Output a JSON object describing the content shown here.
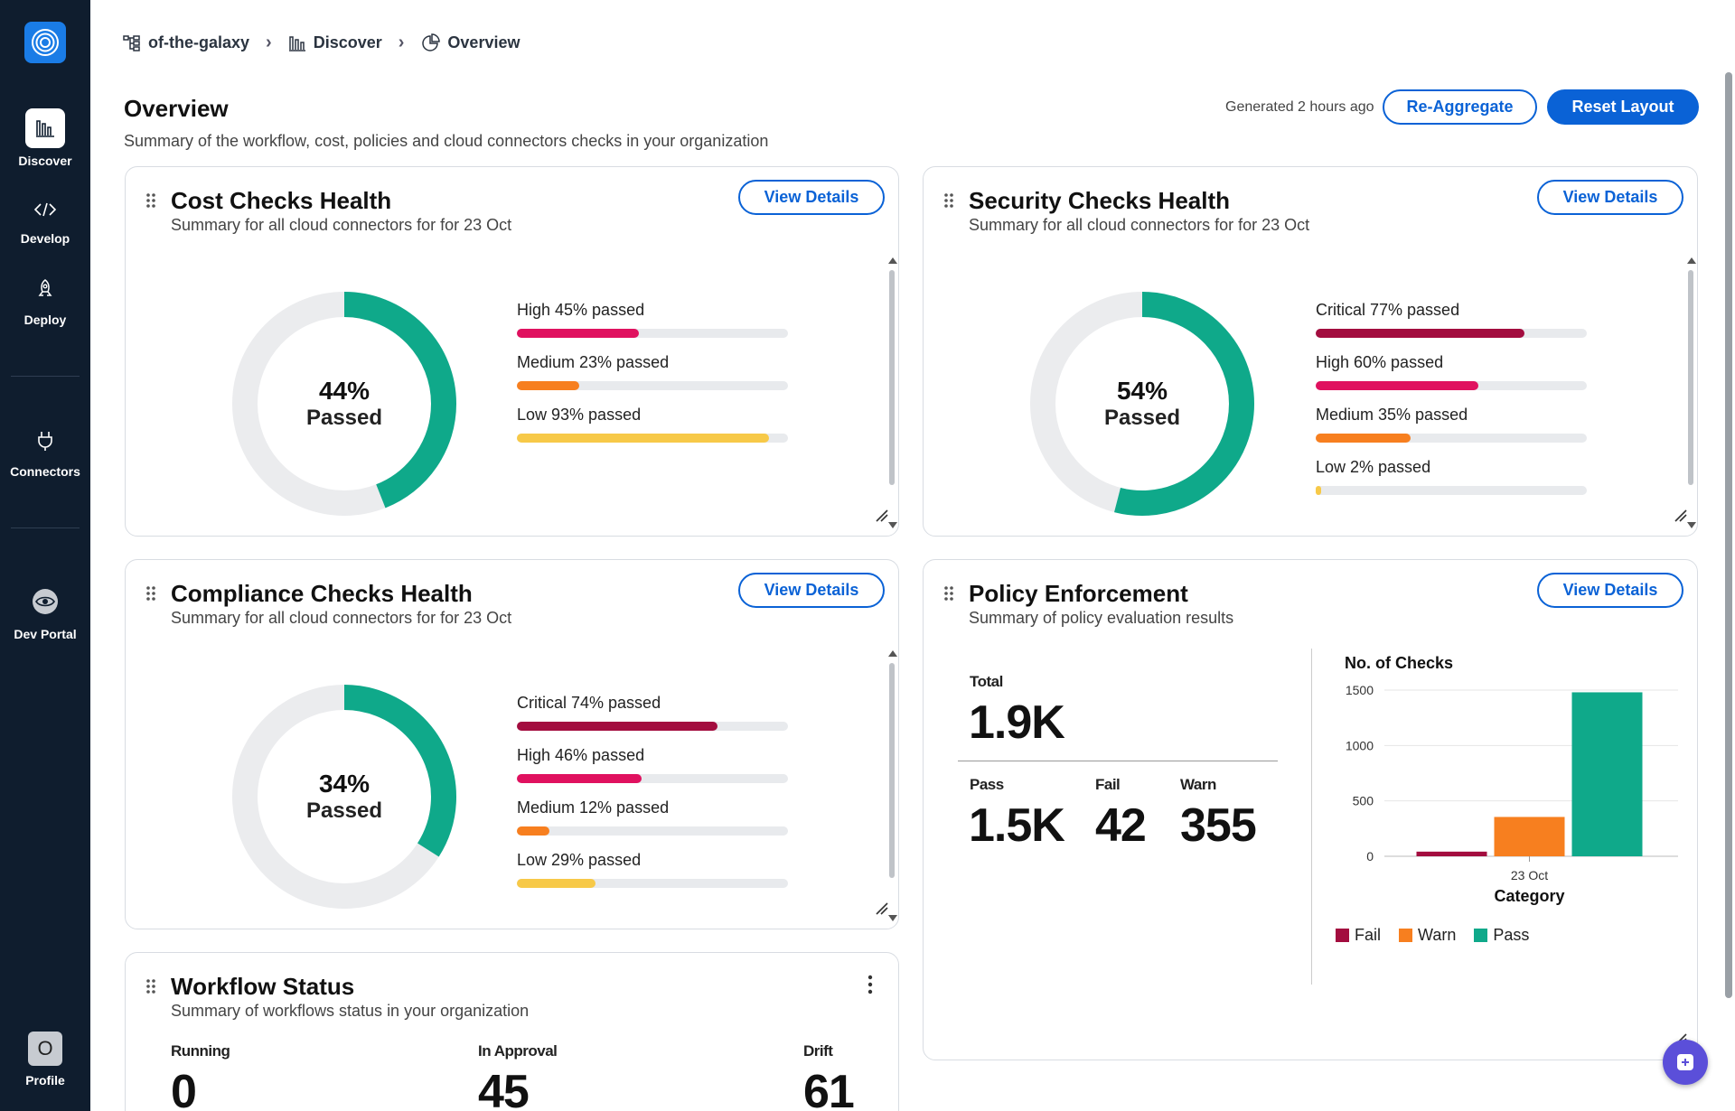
{
  "sidebar": {
    "items": [
      {
        "label": "Discover",
        "icon": "discover-icon",
        "active": true
      },
      {
        "label": "Develop",
        "icon": "code-icon"
      },
      {
        "label": "Deploy",
        "icon": "rocket-icon"
      },
      {
        "label": "Connectors",
        "icon": "plug-icon"
      },
      {
        "label": "Dev Portal",
        "icon": "portal-icon"
      }
    ],
    "profile": {
      "initial": "O",
      "label": "Profile"
    }
  },
  "breadcrumb": {
    "org": "of-the-galaxy",
    "section": "Discover",
    "page": "Overview"
  },
  "header": {
    "title": "Overview",
    "subtitle": "Summary of the workflow, cost, policies and cloud connectors checks in your organization",
    "generated": "Generated 2 hours ago",
    "reaggregate_label": "Re-Aggregate",
    "reset_label": "Reset Layout"
  },
  "cost": {
    "title": "Cost Checks Health",
    "subtitle": "Summary for all cloud connectors for for 23 Oct",
    "view_label": "View Details",
    "percent": 44,
    "percent_text": "44%",
    "passed_text": "Passed",
    "bars": [
      {
        "label": "High 45% passed",
        "value": 45,
        "color": "#e0115f"
      },
      {
        "label": "Medium 23% passed",
        "value": 23,
        "color": "#f77f1f"
      },
      {
        "label": "Low 93% passed",
        "value": 93,
        "color": "#f7c948"
      }
    ]
  },
  "security": {
    "title": "Security Checks Health",
    "subtitle": "Summary for all cloud connectors for for 23 Oct",
    "view_label": "View Details",
    "percent": 54,
    "percent_text": "54%",
    "passed_text": "Passed",
    "bars": [
      {
        "label": "Critical 77% passed",
        "value": 77,
        "color": "#a30d3f"
      },
      {
        "label": "High 60% passed",
        "value": 60,
        "color": "#e0115f"
      },
      {
        "label": "Medium 35% passed",
        "value": 35,
        "color": "#f77f1f"
      },
      {
        "label": "Low 2% passed",
        "value": 2,
        "color": "#f7c948"
      }
    ]
  },
  "compliance": {
    "title": "Compliance Checks Health",
    "subtitle": "Summary for all cloud connectors for for 23 Oct",
    "view_label": "View Details",
    "percent": 34,
    "percent_text": "34%",
    "passed_text": "Passed",
    "bars": [
      {
        "label": "Critical 74% passed",
        "value": 74,
        "color": "#a30d3f"
      },
      {
        "label": "High 46% passed",
        "value": 46,
        "color": "#e0115f"
      },
      {
        "label": "Medium 12% passed",
        "value": 12,
        "color": "#f77f1f"
      },
      {
        "label": "Low 29% passed",
        "value": 29,
        "color": "#f7c948"
      }
    ]
  },
  "policy": {
    "title": "Policy Enforcement",
    "subtitle": "Summary of policy evaluation results",
    "view_label": "View Details",
    "total_label": "Total",
    "total_value": "1.9K",
    "pass_label": "Pass",
    "pass_value": "1.5K",
    "fail_label": "Fail",
    "fail_value": "42",
    "warn_label": "Warn",
    "warn_value": "355"
  },
  "workflow": {
    "title": "Workflow Status",
    "subtitle": "Summary of workflows status in your organization",
    "running_label": "Running",
    "running_value": "0",
    "approval_label": "In Approval",
    "approval_value": "45",
    "drift_label": "Drift",
    "drift_value": "61"
  },
  "colors": {
    "accent": "#0a62d6",
    "donut_fill": "#0fa98a",
    "donut_track": "#ebecee",
    "sidebar_bg": "#0f1d2e"
  },
  "chart_data": {
    "type": "bar",
    "title": "No. of Checks",
    "xlabel": "Category",
    "ylabel": "",
    "categories": [
      "23 Oct"
    ],
    "yticks": [
      0,
      500,
      1000,
      1500
    ],
    "ylim": [
      0,
      1500
    ],
    "series": [
      {
        "name": "Fail",
        "values": [
          42
        ],
        "color": "#a30d3f"
      },
      {
        "name": "Warn",
        "values": [
          355
        ],
        "color": "#f77f1f"
      },
      {
        "name": "Pass",
        "values": [
          1480
        ],
        "color": "#0fa98a"
      }
    ],
    "legend": "bottom-left",
    "grid": true
  }
}
